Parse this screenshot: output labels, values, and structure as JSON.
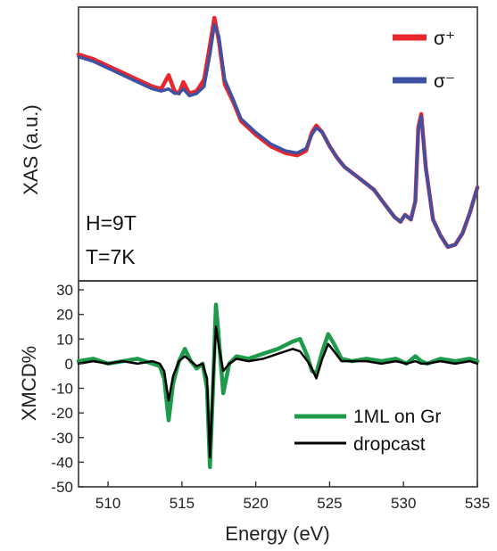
{
  "chart_data": [
    {
      "type": "line",
      "ylabel": "XAS (a.u.)",
      "xlim": [
        508,
        535
      ],
      "ylim": [
        0,
        1
      ],
      "annotations": [
        "H=9T",
        "T=7K"
      ],
      "legend_position": "top-right",
      "series": [
        {
          "name": "σ⁺",
          "color": "#e8262b",
          "x": [
            508,
            509,
            510,
            511,
            512,
            513,
            513.6,
            514.1,
            514.5,
            514.8,
            515.1,
            515.5,
            516,
            516.5,
            516.9,
            517.2,
            517.5,
            517.9,
            518.5,
            519,
            520,
            521,
            522,
            522.8,
            523.4,
            523.8,
            524.1,
            524.5,
            525,
            525.5,
            526,
            527,
            528,
            528.8,
            529.4,
            529.8,
            530.1,
            530.5,
            530.8,
            531,
            531.2,
            531.5,
            532,
            532.5,
            533,
            533.5,
            534,
            534.5,
            535
          ],
          "values": [
            0.84,
            0.82,
            0.79,
            0.76,
            0.73,
            0.7,
            0.69,
            0.75,
            0.68,
            0.67,
            0.72,
            0.67,
            0.68,
            0.73,
            0.88,
            1.0,
            0.9,
            0.71,
            0.63,
            0.55,
            0.49,
            0.44,
            0.41,
            0.4,
            0.42,
            0.5,
            0.53,
            0.5,
            0.44,
            0.39,
            0.35,
            0.3,
            0.25,
            0.18,
            0.13,
            0.11,
            0.14,
            0.12,
            0.2,
            0.52,
            0.58,
            0.35,
            0.12,
            0.05,
            0.0,
            0.01,
            0.06,
            0.15,
            0.26
          ]
        },
        {
          "name": "σ⁻",
          "color": "#3f51a3",
          "x": [
            508,
            509,
            510,
            511,
            512,
            513,
            513.6,
            514.1,
            514.5,
            514.8,
            515.1,
            515.5,
            516,
            516.5,
            516.9,
            517.2,
            517.5,
            517.9,
            518.5,
            519,
            520,
            521,
            522,
            522.8,
            523.4,
            523.8,
            524.1,
            524.5,
            525,
            525.5,
            526,
            527,
            528,
            528.8,
            529.4,
            529.8,
            530.1,
            530.5,
            530.8,
            531,
            531.2,
            531.5,
            532,
            532.5,
            533,
            533.5,
            534,
            534.5,
            535
          ],
          "values": [
            0.83,
            0.81,
            0.78,
            0.75,
            0.72,
            0.69,
            0.68,
            0.69,
            0.67,
            0.67,
            0.69,
            0.66,
            0.67,
            0.7,
            0.84,
            0.97,
            0.92,
            0.73,
            0.64,
            0.56,
            0.5,
            0.45,
            0.42,
            0.41,
            0.43,
            0.49,
            0.52,
            0.5,
            0.44,
            0.39,
            0.35,
            0.3,
            0.25,
            0.18,
            0.13,
            0.11,
            0.14,
            0.12,
            0.2,
            0.51,
            0.57,
            0.35,
            0.12,
            0.05,
            0.0,
            0.01,
            0.06,
            0.15,
            0.26
          ]
        }
      ]
    },
    {
      "type": "line",
      "xlabel": "Energy (eV)",
      "ylabel": "XMCD%",
      "xlim": [
        508,
        535
      ],
      "ylim": [
        -50,
        30
      ],
      "xticks": [
        510,
        515,
        520,
        525,
        530,
        535
      ],
      "yticks": [
        30,
        20,
        10,
        0,
        -10,
        -20,
        -30,
        -40,
        -50
      ],
      "legend_position": "bottom-right",
      "series": [
        {
          "name": "1ML on Gr",
          "color": "#1d9a4a",
          "x": [
            508,
            509,
            510,
            511,
            512,
            513,
            513.5,
            513.8,
            514.1,
            514.4,
            514.8,
            515.2,
            515.6,
            516,
            516.4,
            516.7,
            516.9,
            517.1,
            517.3,
            517.5,
            517.8,
            518.2,
            518.7,
            519.5,
            520.5,
            521.5,
            522.5,
            523,
            523.5,
            523.8,
            524.1,
            524.5,
            524.9,
            525.3,
            525.8,
            526.5,
            527.5,
            528.5,
            529.5,
            530.2,
            530.8,
            531.2,
            531.6,
            532.5,
            533.5,
            534.5,
            535
          ],
          "values": [
            1,
            2,
            0,
            1,
            2,
            0,
            -1,
            -6,
            -23,
            -8,
            1,
            6,
            1,
            -2,
            0,
            -10,
            -42,
            -10,
            24,
            10,
            -12,
            0,
            3,
            2,
            4,
            6,
            9,
            10,
            3,
            -3,
            -4,
            5,
            12,
            8,
            2,
            1,
            2,
            1,
            2,
            0,
            3,
            1,
            0,
            2,
            1,
            2,
            1
          ]
        },
        {
          "name": "dropcast",
          "color": "#000000",
          "x": [
            508,
            509,
            510,
            511,
            512,
            513,
            513.5,
            513.8,
            514.1,
            514.4,
            514.8,
            515.2,
            515.6,
            516,
            516.4,
            516.7,
            516.9,
            517.1,
            517.3,
            517.5,
            517.8,
            518.2,
            518.7,
            519.5,
            520.5,
            521.5,
            522.5,
            523,
            523.5,
            523.8,
            524.1,
            524.5,
            524.9,
            525.3,
            525.8,
            526.5,
            527.5,
            528.5,
            529.5,
            530.2,
            530.8,
            531.2,
            531.6,
            532.5,
            533.5,
            534.5,
            535
          ],
          "values": [
            0,
            1,
            0,
            1,
            0,
            1,
            0,
            -3,
            -15,
            -5,
            1,
            3,
            1,
            -1,
            0,
            -6,
            -38,
            -8,
            15,
            7,
            -3,
            0,
            2,
            1,
            2,
            4,
            6,
            5,
            1,
            -2,
            -6,
            2,
            8,
            5,
            1,
            1,
            1,
            0,
            1,
            0,
            1,
            0,
            0,
            1,
            0,
            1,
            0
          ]
        }
      ]
    }
  ]
}
